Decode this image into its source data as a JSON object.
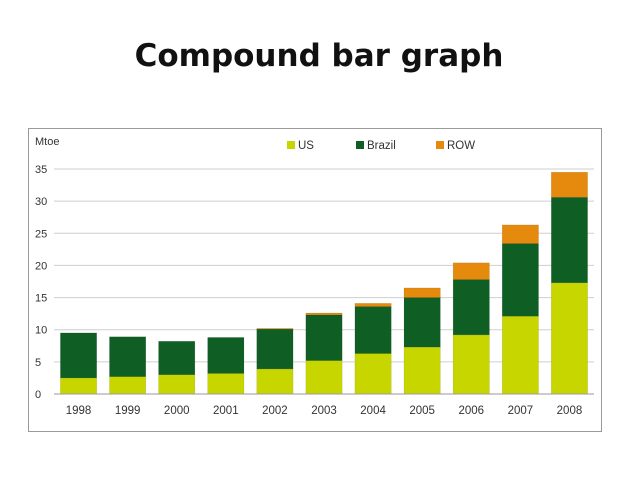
{
  "slide": {
    "title": "Compound bar graph"
  },
  "chart_data": {
    "type": "bar",
    "stacked": true,
    "title": "",
    "xlabel": "",
    "ylabel": "Mtoe",
    "ylim": [
      0,
      35
    ],
    "yticks": [
      0,
      5,
      10,
      15,
      20,
      25,
      30,
      35
    ],
    "grid": true,
    "legend": "top-center",
    "categories": [
      "1998",
      "1999",
      "2000",
      "2001",
      "2002",
      "2003",
      "2004",
      "2005",
      "2006",
      "2007",
      "2008"
    ],
    "series": [
      {
        "name": "US",
        "color": "#c8d600",
        "values": [
          2.5,
          2.7,
          3.0,
          3.2,
          3.9,
          5.2,
          6.3,
          7.3,
          9.2,
          12.1,
          17.3
        ]
      },
      {
        "name": "Brazil",
        "color": "#0f5f24",
        "values": [
          7.0,
          6.2,
          5.2,
          5.6,
          6.2,
          7.1,
          7.3,
          7.7,
          8.6,
          11.3,
          13.3
        ]
      },
      {
        "name": "ROW",
        "color": "#e58a0c",
        "values": [
          0.0,
          0.0,
          0.0,
          0.0,
          0.1,
          0.3,
          0.5,
          1.5,
          2.6,
          2.9,
          3.9
        ]
      }
    ]
  }
}
